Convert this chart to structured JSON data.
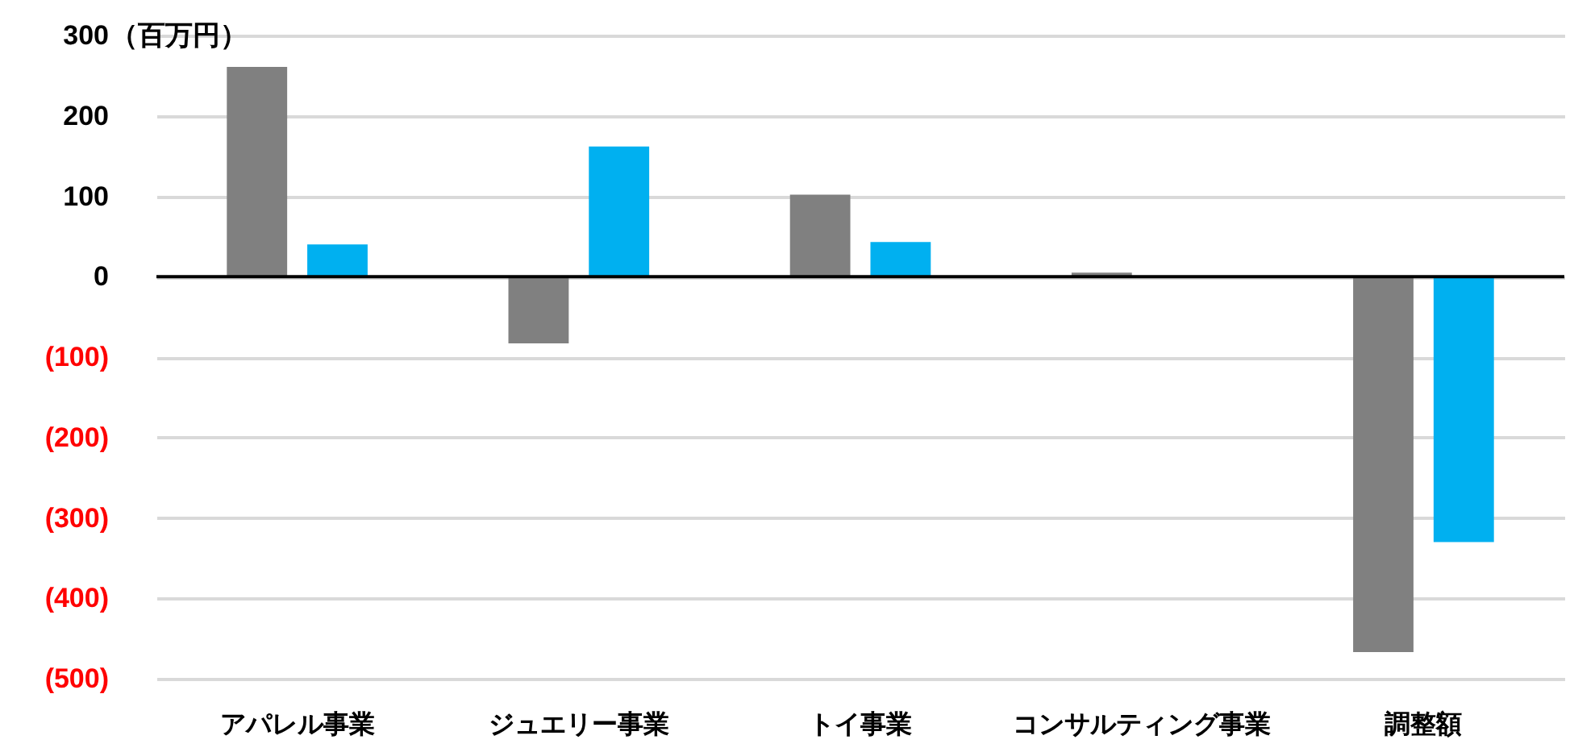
{
  "chart_data": {
    "type": "bar",
    "ylabel": "（百万円）",
    "categories": [
      "アパレル事業",
      "ジュエリー事業",
      "トイ事業",
      "コンサルティング事業",
      "調整額"
    ],
    "series": [
      {
        "color": "#808080",
        "values": [
          261,
          -83,
          102,
          5,
          -467
        ]
      },
      {
        "color": "#00b0f0",
        "values": [
          40,
          162,
          43,
          null,
          -330
        ]
      }
    ],
    "ylim": [
      -500,
      300
    ],
    "yticks": [
      {
        "value": -500,
        "label": "(500)"
      },
      {
        "value": -400,
        "label": "(400)"
      },
      {
        "value": -300,
        "label": "(300)"
      },
      {
        "value": -200,
        "label": "(200)"
      },
      {
        "value": -100,
        "label": "(100)"
      },
      0,
      100,
      200,
      300
    ],
    "grid": "y",
    "legend": false,
    "ref_lines": [
      {
        "axis": "y",
        "value": 0,
        "color": "#000000"
      }
    ]
  }
}
